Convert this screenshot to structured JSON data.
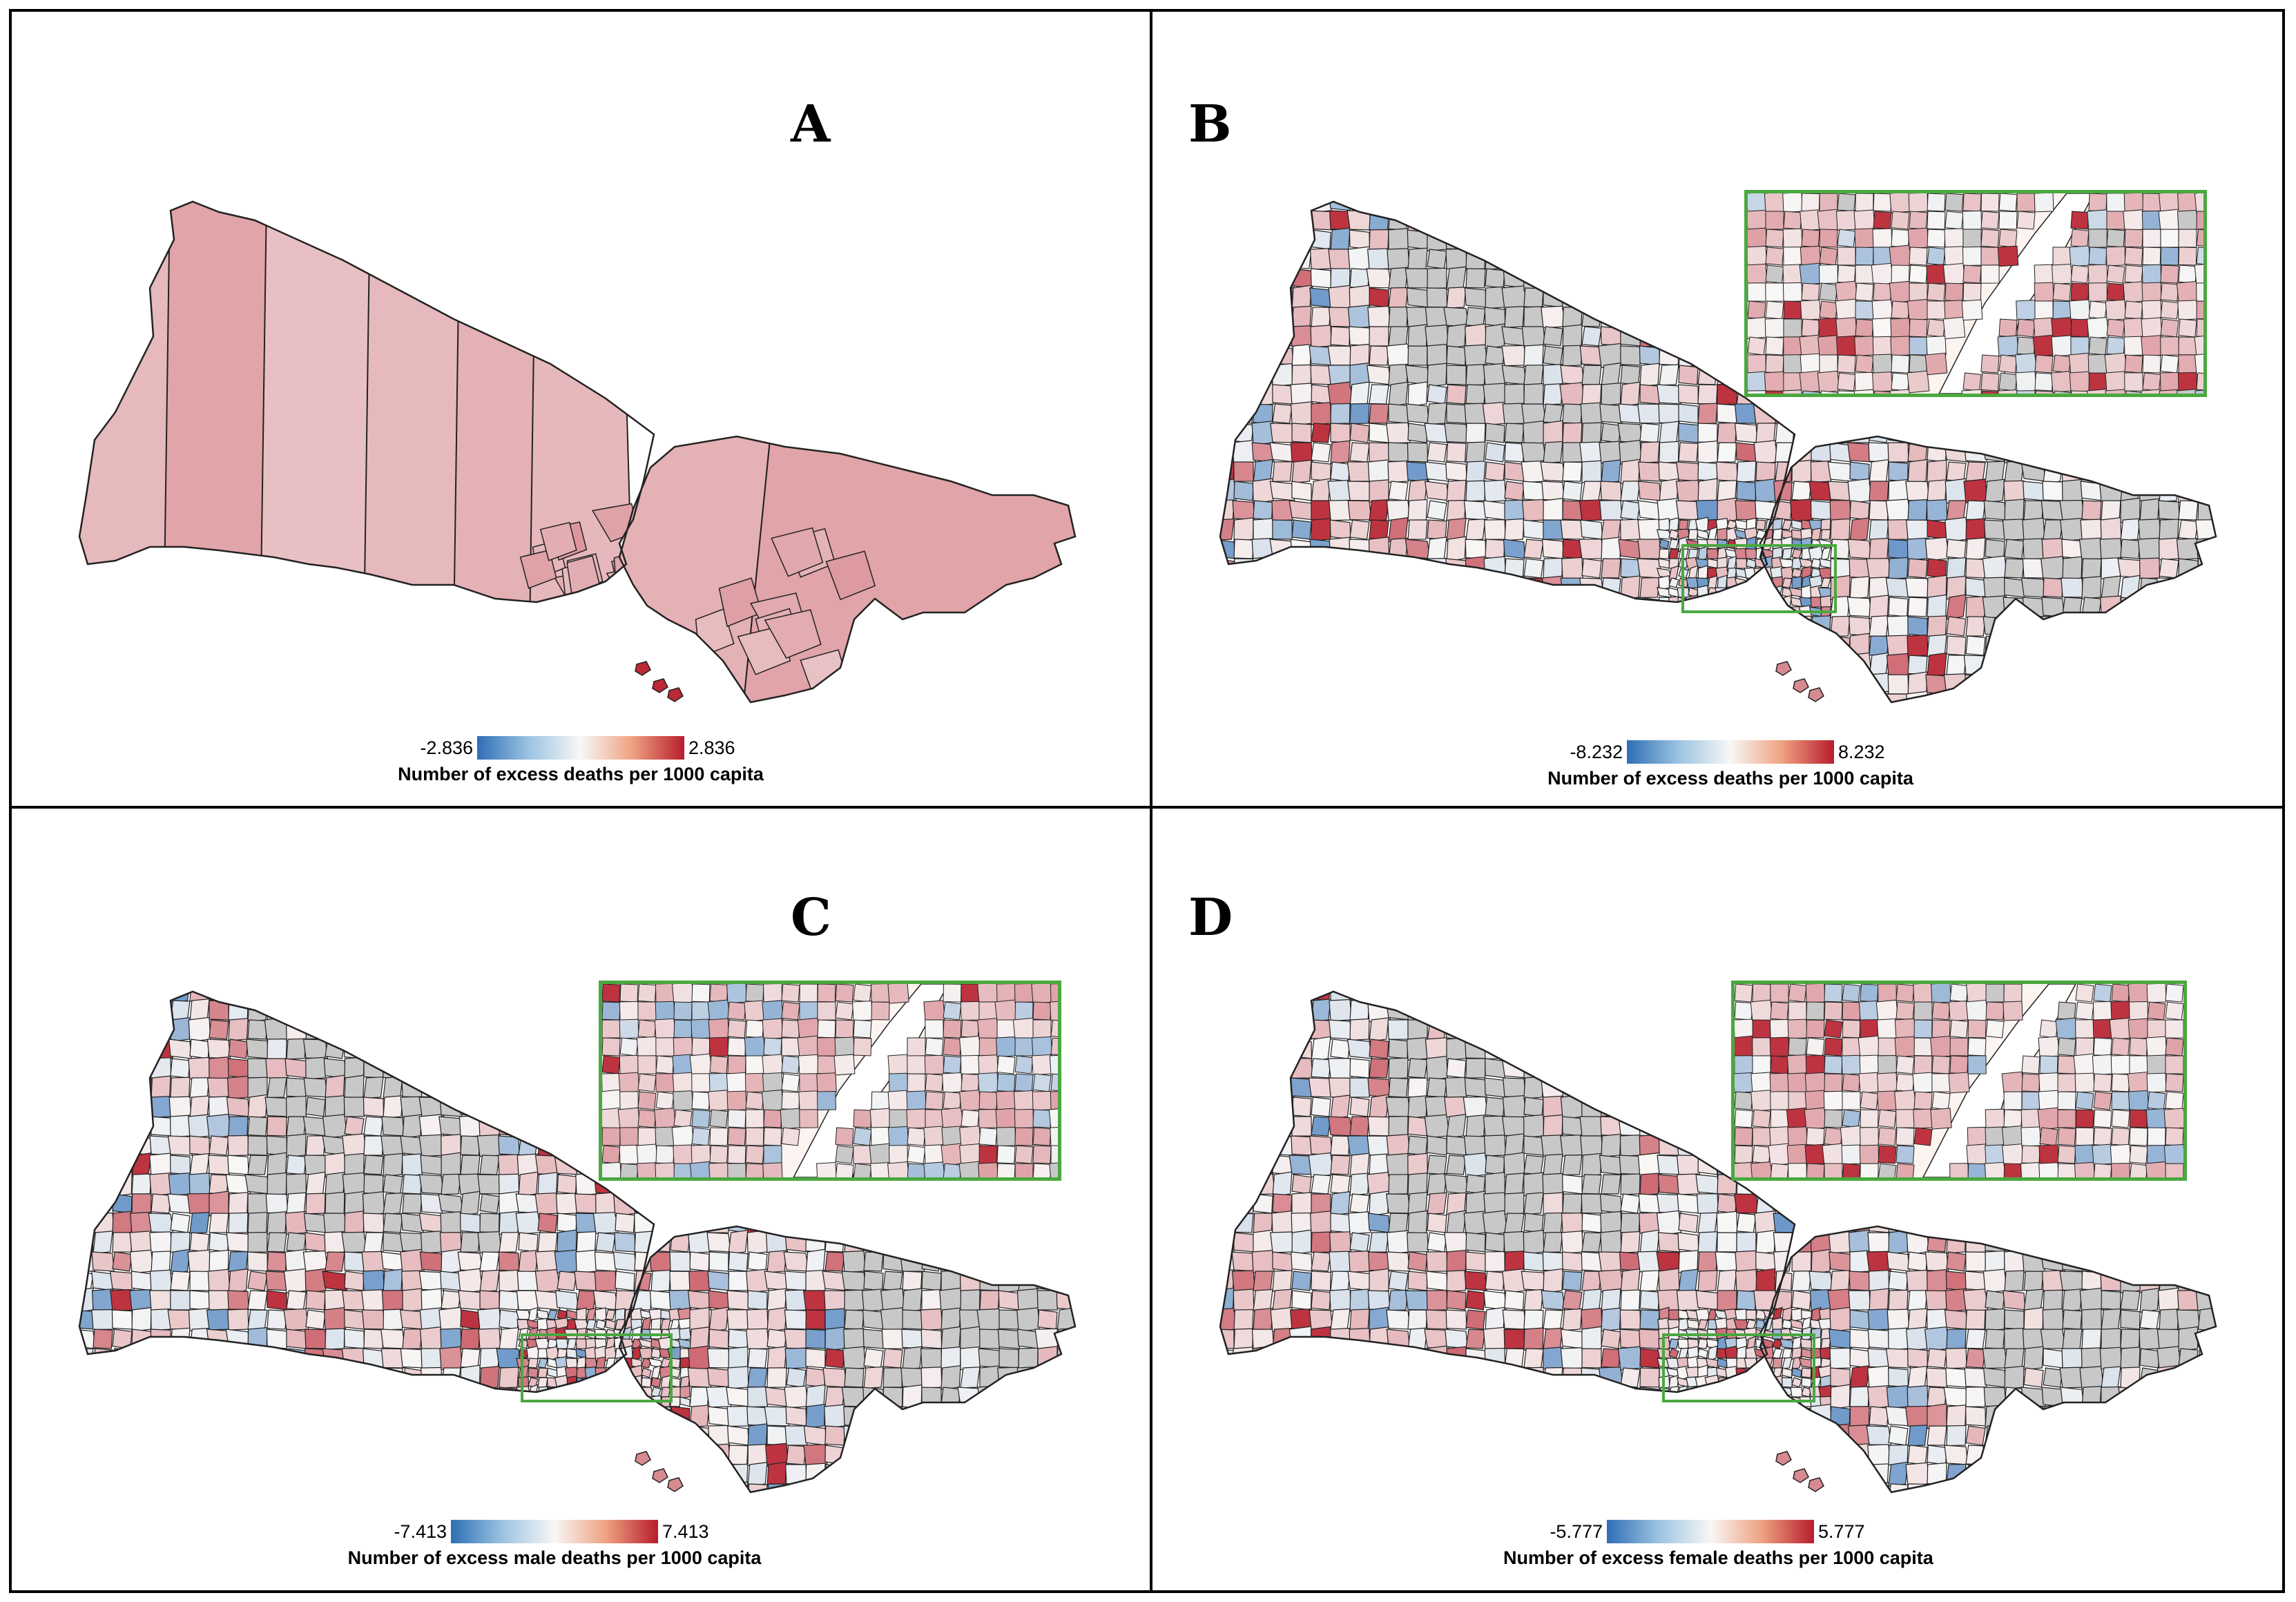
{
  "colors": {
    "neg_max": "#2f6eb5",
    "neutral": "#f8f7f6",
    "pos_max": "#b81d2c",
    "missing": "#c8c8c8",
    "inset_border": "#4aa83f",
    "outline": "#222222"
  },
  "panels": [
    {
      "label": "A",
      "legend": {
        "min": "-2.836",
        "max": "2.836",
        "title": "Number of excess deaths per 1000 capita"
      },
      "has_inset": false
    },
    {
      "label": "B",
      "legend": {
        "min": "-8.232",
        "max": "8.232",
        "title": "Number of excess deaths per 1000 capita"
      },
      "has_inset": true
    },
    {
      "label": "C",
      "legend": {
        "min": "-7.413",
        "max": "7.413",
        "title": "Number of excess male deaths per 1000 capita"
      },
      "has_inset": true
    },
    {
      "label": "D",
      "legend": {
        "min": "-5.777",
        "max": "5.777",
        "title": "Number of excess female deaths per 1000 capita"
      },
      "has_inset": true
    }
  ]
}
